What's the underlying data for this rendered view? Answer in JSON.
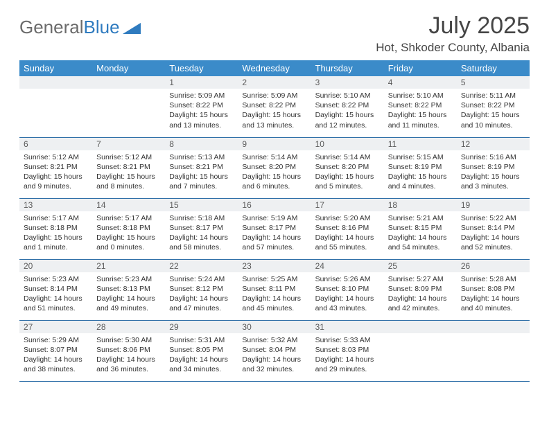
{
  "logo": {
    "text1": "General",
    "text2": "Blue"
  },
  "title": "July 2025",
  "location": "Hot, Shkoder County, Albania",
  "colors": {
    "header_bg": "#3b8bc9",
    "header_text": "#ffffff",
    "daynum_bg": "#eef0f2",
    "border": "#2f6fa8",
    "logo_gray": "#6b6b6b",
    "logo_blue": "#2f7bbf"
  },
  "weekdays": [
    "Sunday",
    "Monday",
    "Tuesday",
    "Wednesday",
    "Thursday",
    "Friday",
    "Saturday"
  ],
  "weeks": [
    [
      null,
      null,
      {
        "n": "1",
        "sr": "5:09 AM",
        "ss": "8:22 PM",
        "dl": "15 hours and 13 minutes."
      },
      {
        "n": "2",
        "sr": "5:09 AM",
        "ss": "8:22 PM",
        "dl": "15 hours and 13 minutes."
      },
      {
        "n": "3",
        "sr": "5:10 AM",
        "ss": "8:22 PM",
        "dl": "15 hours and 12 minutes."
      },
      {
        "n": "4",
        "sr": "5:10 AM",
        "ss": "8:22 PM",
        "dl": "15 hours and 11 minutes."
      },
      {
        "n": "5",
        "sr": "5:11 AM",
        "ss": "8:22 PM",
        "dl": "15 hours and 10 minutes."
      }
    ],
    [
      {
        "n": "6",
        "sr": "5:12 AM",
        "ss": "8:21 PM",
        "dl": "15 hours and 9 minutes."
      },
      {
        "n": "7",
        "sr": "5:12 AM",
        "ss": "8:21 PM",
        "dl": "15 hours and 8 minutes."
      },
      {
        "n": "8",
        "sr": "5:13 AM",
        "ss": "8:21 PM",
        "dl": "15 hours and 7 minutes."
      },
      {
        "n": "9",
        "sr": "5:14 AM",
        "ss": "8:20 PM",
        "dl": "15 hours and 6 minutes."
      },
      {
        "n": "10",
        "sr": "5:14 AM",
        "ss": "8:20 PM",
        "dl": "15 hours and 5 minutes."
      },
      {
        "n": "11",
        "sr": "5:15 AM",
        "ss": "8:19 PM",
        "dl": "15 hours and 4 minutes."
      },
      {
        "n": "12",
        "sr": "5:16 AM",
        "ss": "8:19 PM",
        "dl": "15 hours and 3 minutes."
      }
    ],
    [
      {
        "n": "13",
        "sr": "5:17 AM",
        "ss": "8:18 PM",
        "dl": "15 hours and 1 minute."
      },
      {
        "n": "14",
        "sr": "5:17 AM",
        "ss": "8:18 PM",
        "dl": "15 hours and 0 minutes."
      },
      {
        "n": "15",
        "sr": "5:18 AM",
        "ss": "8:17 PM",
        "dl": "14 hours and 58 minutes."
      },
      {
        "n": "16",
        "sr": "5:19 AM",
        "ss": "8:17 PM",
        "dl": "14 hours and 57 minutes."
      },
      {
        "n": "17",
        "sr": "5:20 AM",
        "ss": "8:16 PM",
        "dl": "14 hours and 55 minutes."
      },
      {
        "n": "18",
        "sr": "5:21 AM",
        "ss": "8:15 PM",
        "dl": "14 hours and 54 minutes."
      },
      {
        "n": "19",
        "sr": "5:22 AM",
        "ss": "8:14 PM",
        "dl": "14 hours and 52 minutes."
      }
    ],
    [
      {
        "n": "20",
        "sr": "5:23 AM",
        "ss": "8:14 PM",
        "dl": "14 hours and 51 minutes."
      },
      {
        "n": "21",
        "sr": "5:23 AM",
        "ss": "8:13 PM",
        "dl": "14 hours and 49 minutes."
      },
      {
        "n": "22",
        "sr": "5:24 AM",
        "ss": "8:12 PM",
        "dl": "14 hours and 47 minutes."
      },
      {
        "n": "23",
        "sr": "5:25 AM",
        "ss": "8:11 PM",
        "dl": "14 hours and 45 minutes."
      },
      {
        "n": "24",
        "sr": "5:26 AM",
        "ss": "8:10 PM",
        "dl": "14 hours and 43 minutes."
      },
      {
        "n": "25",
        "sr": "5:27 AM",
        "ss": "8:09 PM",
        "dl": "14 hours and 42 minutes."
      },
      {
        "n": "26",
        "sr": "5:28 AM",
        "ss": "8:08 PM",
        "dl": "14 hours and 40 minutes."
      }
    ],
    [
      {
        "n": "27",
        "sr": "5:29 AM",
        "ss": "8:07 PM",
        "dl": "14 hours and 38 minutes."
      },
      {
        "n": "28",
        "sr": "5:30 AM",
        "ss": "8:06 PM",
        "dl": "14 hours and 36 minutes."
      },
      {
        "n": "29",
        "sr": "5:31 AM",
        "ss": "8:05 PM",
        "dl": "14 hours and 34 minutes."
      },
      {
        "n": "30",
        "sr": "5:32 AM",
        "ss": "8:04 PM",
        "dl": "14 hours and 32 minutes."
      },
      {
        "n": "31",
        "sr": "5:33 AM",
        "ss": "8:03 PM",
        "dl": "14 hours and 29 minutes."
      },
      null,
      null
    ]
  ],
  "labels": {
    "sunrise": "Sunrise:",
    "sunset": "Sunset:",
    "daylight": "Daylight:"
  }
}
